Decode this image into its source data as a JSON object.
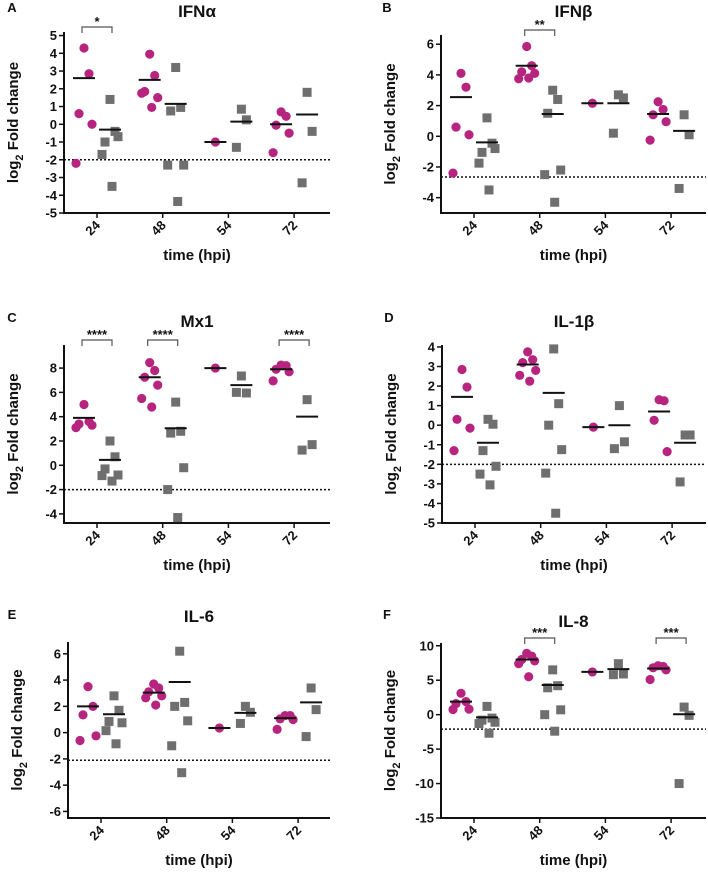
{
  "colors": {
    "infected": "#b7247f",
    "control": "#6f6f6f",
    "mean": "#111111"
  },
  "chart_data": [
    {
      "type": "scatter",
      "panel": "A",
      "title": "IFNα",
      "ylabel": "log2 Fold change",
      "xlabel": "time (hpi)",
      "categories": [
        "24",
        "48",
        "54",
        "72"
      ],
      "ylim": [
        -5,
        5.2
      ],
      "yticks": [
        -5,
        -4,
        -3,
        -2,
        -1,
        0,
        1,
        2,
        3,
        4,
        5
      ],
      "threshold": -2,
      "groups": [
        {
          "circles": [
            4.3,
            2.85,
            0.6,
            0.0,
            -2.2
          ],
          "circle_mean": 2.6,
          "squares": [
            1.4,
            -0.4,
            -1.0,
            -0.7,
            -1.7,
            -3.5
          ],
          "square_mean": -0.3,
          "sig": "*"
        },
        {
          "circles": [
            3.95,
            2.75,
            1.85,
            1.5,
            1.75,
            0.95
          ],
          "circle_mean": 2.5,
          "squares": [
            3.2,
            0.95,
            0.75,
            -2.3,
            -2.3,
            -4.35
          ],
          "square_mean": 1.15,
          "sig": ""
        },
        {
          "circles": [
            -1.0
          ],
          "circle_mean": -1.0,
          "squares": [
            0.85,
            0.25,
            -1.3
          ],
          "square_mean": 0.15,
          "sig": ""
        },
        {
          "circles": [
            0.7,
            0.45,
            -0.05,
            -0.5,
            -1.6
          ],
          "circle_mean": 0.0,
          "squares": [
            1.8,
            -0.4,
            -3.3
          ],
          "square_mean": 0.55,
          "sig": ""
        }
      ]
    },
    {
      "type": "scatter",
      "panel": "B",
      "title": "IFNβ",
      "ylabel": "log2 Fold change",
      "xlabel": "time (hpi)",
      "categories": [
        "24",
        "48",
        "54",
        "72"
      ],
      "ylim": [
        -5,
        6.6
      ],
      "yticks": [
        -4,
        -2,
        0,
        2,
        4,
        6
      ],
      "threshold": -2.65,
      "groups": [
        {
          "circles": [
            4.1,
            3.2,
            0.6,
            0.1,
            -2.4
          ],
          "circle_mean": 2.55,
          "squares": [
            1.2,
            -0.45,
            -1.05,
            -0.8,
            -1.75,
            -3.5
          ],
          "square_mean": -0.4,
          "sig": ""
        },
        {
          "circles": [
            5.85,
            4.6,
            4.2,
            4.1,
            3.75,
            3.8
          ],
          "circle_mean": 4.6,
          "squares": [
            3.0,
            2.4,
            1.5,
            -2.2,
            -2.5,
            -4.3
          ],
          "square_mean": 1.45,
          "sig": "**"
        },
        {
          "circles": [
            2.15
          ],
          "circle_mean": 2.15,
          "squares": [
            2.7,
            2.5,
            0.2
          ],
          "square_mean": 2.15,
          "sig": ""
        },
        {
          "circles": [
            2.25,
            1.75,
            1.4,
            0.95,
            -0.25
          ],
          "circle_mean": 1.45,
          "squares": [
            1.4,
            0.1,
            -3.4
          ],
          "square_mean": 0.35,
          "sig": ""
        }
      ]
    },
    {
      "type": "scatter",
      "panel": "C",
      "title": "Mx1",
      "ylabel": "log2 Fold change",
      "xlabel": "time (hpi)",
      "categories": [
        "24",
        "48",
        "54",
        "72"
      ],
      "ylim": [
        -4.75,
        9.9
      ],
      "yticks": [
        -4,
        -2,
        0,
        2,
        4,
        6,
        8
      ],
      "threshold": -2,
      "groups": [
        {
          "circles": [
            5.0,
            3.6,
            3.4,
            3.3,
            3.1
          ],
          "circle_mean": 3.9,
          "squares": [
            2.0,
            0.7,
            -0.3,
            -0.8,
            -0.85,
            -1.3
          ],
          "square_mean": 0.45,
          "sig": "****"
        },
        {
          "circles": [
            8.45,
            7.8,
            7.25,
            6.6,
            5.5,
            4.8
          ],
          "circle_mean": 7.25,
          "squares": [
            5.2,
            2.8,
            2.65,
            -0.2,
            -2.0,
            -4.3
          ],
          "square_mean": 3.05,
          "sig": "****"
        },
        {
          "circles": [
            8.0
          ],
          "circle_mean": 8.0,
          "squares": [
            7.35,
            5.95,
            6.0
          ],
          "square_mean": 6.6,
          "sig": ""
        },
        {
          "circles": [
            8.25,
            8.2,
            7.9,
            7.7,
            6.95
          ],
          "circle_mean": 7.9,
          "squares": [
            5.4,
            1.7,
            1.25
          ],
          "square_mean": 4.0,
          "sig": "****"
        }
      ]
    },
    {
      "type": "scatter",
      "panel": "D",
      "title": "IL-1β",
      "ylabel": "log2 Fold change",
      "xlabel": "time (hpi)",
      "categories": [
        "24",
        "48",
        "54",
        "72"
      ],
      "ylim": [
        -5,
        4.1
      ],
      "yticks": [
        -5,
        -4,
        -3,
        -2,
        -1,
        0,
        1,
        2,
        3,
        4
      ],
      "threshold": -2,
      "groups": [
        {
          "circles": [
            2.85,
            1.95,
            0.3,
            -0.15,
            -1.3
          ],
          "circle_mean": 1.45,
          "squares": [
            0.3,
            0.05,
            -1.3,
            -2.1,
            -2.5,
            -3.05
          ],
          "square_mean": -0.9,
          "sig": ""
        },
        {
          "circles": [
            3.75,
            3.35,
            3.2,
            2.8,
            2.55,
            2.25
          ],
          "circle_mean": 3.1,
          "squares": [
            3.9,
            1.1,
            0.0,
            -1.25,
            -2.45,
            -4.5
          ],
          "square_mean": 1.65,
          "sig": ""
        },
        {
          "circles": [
            -0.1
          ],
          "circle_mean": -0.1,
          "squares": [
            1.0,
            -0.85,
            -1.2
          ],
          "square_mean": 0.0,
          "sig": ""
        },
        {
          "circles": [
            1.3,
            1.25,
            0.25,
            -1.35
          ],
          "circle_mean": 0.7,
          "squares": [
            -0.5,
            -0.5,
            -2.9
          ],
          "square_mean": -0.9,
          "sig": ""
        }
      ]
    },
    {
      "type": "scatter",
      "panel": "E",
      "title": "IL-6",
      "ylabel": "log2 Fold change",
      "xlabel": "time (hpi)",
      "categories": [
        "24",
        "48",
        "54",
        "72"
      ],
      "ylim": [
        -6.5,
        6.9
      ],
      "yticks": [
        -6,
        -4,
        -2,
        0,
        2,
        4,
        6
      ],
      "threshold": -2.1,
      "groups": [
        {
          "circles": [
            3.5,
            2.0,
            1.35,
            -0.25,
            -0.6
          ],
          "circle_mean": 2.0,
          "squares": [
            2.8,
            1.7,
            0.85,
            0.75,
            0.15,
            -0.85
          ],
          "square_mean": 1.4,
          "sig": ""
        },
        {
          "circles": [
            3.7,
            3.4,
            3.1,
            2.8,
            2.65,
            2.1
          ],
          "circle_mean": 3.05,
          "squares": [
            6.2,
            2.3,
            2.0,
            0.9,
            -1.0,
            -3.05
          ],
          "square_mean": 3.85,
          "sig": ""
        },
        {
          "circles": [
            0.35
          ],
          "circle_mean": 0.35,
          "squares": [
            2.0,
            1.55,
            0.7
          ],
          "square_mean": 1.5,
          "sig": ""
        },
        {
          "circles": [
            1.3,
            1.3,
            1.05,
            1.0,
            0.25
          ],
          "circle_mean": 1.1,
          "squares": [
            3.4,
            1.75,
            -0.3
          ],
          "square_mean": 2.3,
          "sig": ""
        }
      ]
    },
    {
      "type": "scatter",
      "panel": "F",
      "title": "IL-8",
      "ylabel": "log2 Fold change",
      "xlabel": "time (hpi)",
      "categories": [
        "24",
        "48",
        "54",
        "72"
      ],
      "ylim": [
        -15,
        10.4
      ],
      "yticks": [
        -15,
        -10,
        -5,
        0,
        5,
        10
      ],
      "threshold": -2.1,
      "groups": [
        {
          "circles": [
            3.1,
            1.9,
            1.6,
            0.8,
            0.75
          ],
          "circle_mean": 1.9,
          "squares": [
            1.2,
            -0.5,
            -0.8,
            -1.1,
            -1.3,
            -2.7
          ],
          "square_mean": -0.4,
          "sig": ""
        },
        {
          "circles": [
            8.9,
            8.5,
            8.0,
            7.8,
            7.4,
            5.5
          ],
          "circle_mean": 8.0,
          "squares": [
            6.5,
            4.2,
            3.9,
            0.7,
            0.0,
            -2.4
          ],
          "square_mean": 4.3,
          "sig": "***"
        },
        {
          "circles": [
            6.2
          ],
          "circle_mean": 6.2,
          "squares": [
            7.4,
            5.9,
            5.8
          ],
          "square_mean": 6.6,
          "sig": ""
        },
        {
          "circles": [
            7.1,
            7.0,
            6.8,
            6.5,
            5.1
          ],
          "circle_mean": 6.7,
          "squares": [
            1.1,
            -0.1,
            -10.0
          ],
          "square_mean": 0.05,
          "sig": "***"
        }
      ]
    }
  ]
}
